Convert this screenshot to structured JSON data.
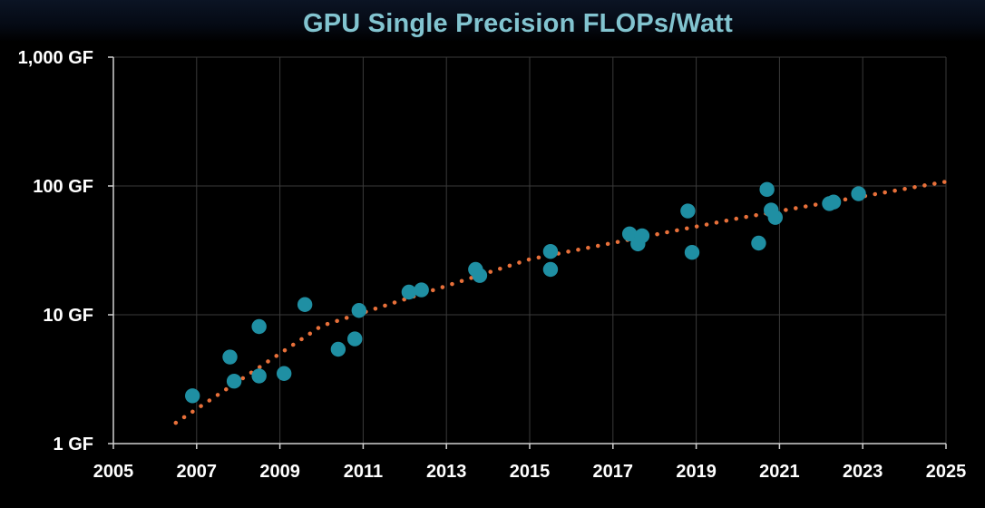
{
  "chart_data": {
    "type": "scatter",
    "title": "GPU Single Precision FLOPs/Watt",
    "xlabel": "",
    "ylabel": "",
    "xlim": [
      2005,
      2025
    ],
    "ylim": [
      1,
      1000
    ],
    "y_scale": "log",
    "x_ticks": [
      "2005",
      "2007",
      "2009",
      "2011",
      "2013",
      "2015",
      "2017",
      "2019",
      "2021",
      "2023",
      "2025"
    ],
    "y_ticks": [
      {
        "value": 1,
        "label": "1 GF"
      },
      {
        "value": 10,
        "label": "10 GF"
      },
      {
        "value": 100,
        "label": "100 GF"
      },
      {
        "value": 1000,
        "label": "1,000 GF"
      }
    ],
    "grid": true,
    "legend": "none",
    "series": [
      {
        "type": "scatter",
        "color": "#1f8fa3",
        "points": [
          [
            2006.9,
            2.35
          ],
          [
            2007.8,
            4.7
          ],
          [
            2007.9,
            3.05
          ],
          [
            2008.5,
            8.1
          ],
          [
            2008.5,
            3.35
          ],
          [
            2009.1,
            3.5
          ],
          [
            2009.6,
            12.0
          ],
          [
            2010.4,
            5.4
          ],
          [
            2010.8,
            6.5
          ],
          [
            2010.9,
            10.8
          ],
          [
            2012.1,
            15.0
          ],
          [
            2012.4,
            15.6
          ],
          [
            2013.7,
            22.5
          ],
          [
            2013.8,
            20.2
          ],
          [
            2015.5,
            31.0
          ],
          [
            2015.5,
            22.5
          ],
          [
            2017.4,
            42.5
          ],
          [
            2017.6,
            35.5
          ],
          [
            2017.7,
            41.0
          ],
          [
            2018.8,
            64.0
          ],
          [
            2018.9,
            30.5
          ],
          [
            2020.5,
            36.0
          ],
          [
            2020.7,
            94.0
          ],
          [
            2020.8,
            65.0
          ],
          [
            2020.9,
            57.0
          ],
          [
            2022.2,
            73.0
          ],
          [
            2022.3,
            75.0
          ],
          [
            2022.9,
            87.0
          ]
        ]
      },
      {
        "type": "trend",
        "style": "dotted",
        "color": "#e8703a",
        "x_range": [
          2006.5,
          2025.0
        ],
        "anchors": [
          [
            2006.5,
            1.45
          ],
          [
            2010.0,
            8.2
          ],
          [
            2015.0,
            27.0
          ],
          [
            2020.0,
            56.0
          ],
          [
            2025.0,
            108.0
          ]
        ]
      }
    ]
  }
}
